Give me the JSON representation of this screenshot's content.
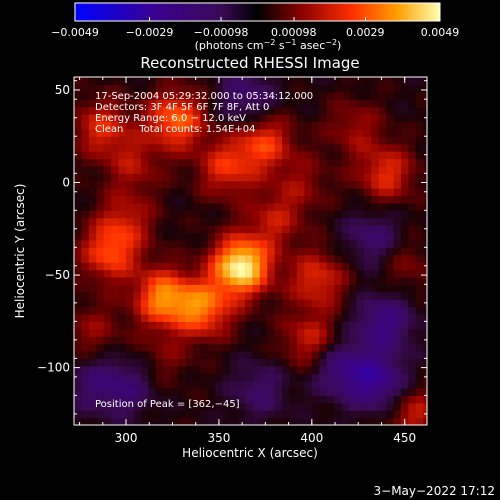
{
  "chart_data": {
    "type": "heatmap",
    "title": "Reconstructed RHESSI Image",
    "xlabel": "Heliocentric X (arcsec)",
    "ylabel": "Heliocentric Y (arcsec)",
    "xlim": [
      272,
      462
    ],
    "ylim": [
      -131,
      57
    ],
    "x_ticks": [
      300,
      350,
      400,
      450
    ],
    "y_ticks": [
      50,
      0,
      -50,
      -100
    ],
    "colorbar": {
      "range": [
        -0.0049,
        0.0049
      ],
      "ticks": [
        -0.0049,
        -0.0029,
        -0.00098,
        0.00098,
        0.0029,
        0.0049
      ],
      "tick_labels": [
        "−0.0049",
        "−0.0029",
        "−0.00098",
        "0.00098",
        "0.0029",
        "0.0049"
      ],
      "unit_label_parts": [
        "(photons cm",
        "−2",
        " s",
        "−1",
        " asec",
        "−2",
        ")"
      ]
    },
    "annotations": [
      "17-Sep-2004 05:29:32.000 to 05:34:12.000",
      "Detectors: 3F 4F 5F 6F 7F 8F, Att 0",
      "Energy Range: 6.0 − 12.0 keV",
      "Clean     Total counts: 1.54E+04"
    ],
    "peak_label": "Position of Peak = [362,−45]",
    "peak": {
      "x": 362,
      "y": -45,
      "value": 0.0049
    },
    "blobs": [
      {
        "x": 362,
        "y": -45,
        "value": 0.0049
      },
      {
        "x": 342,
        "y": -68,
        "value": 0.003
      },
      {
        "x": 320,
        "y": -62,
        "value": 0.0034
      },
      {
        "x": 291,
        "y": -38,
        "value": 0.0026
      },
      {
        "x": 327,
        "y": 34,
        "value": 0.0031
      },
      {
        "x": 287,
        "y": 30,
        "value": 0.0021
      },
      {
        "x": 374,
        "y": 22,
        "value": 0.0025
      },
      {
        "x": 354,
        "y": 8,
        "value": 0.0022
      },
      {
        "x": 403,
        "y": -52,
        "value": 0.0022
      },
      {
        "x": 440,
        "y": 5,
        "value": 0.0022
      },
      {
        "x": 399,
        "y": -85,
        "value": 0.0019
      },
      {
        "x": 300,
        "y": -20,
        "value": 0.0016
      },
      {
        "x": 304,
        "y": 10,
        "value": 0.0014
      },
      {
        "x": 282,
        "y": -80,
        "value": 0.0012
      },
      {
        "x": 455,
        "y": -125,
        "value": 0.0018
      },
      {
        "x": 423,
        "y": 30,
        "value": 0.0013
      },
      {
        "x": 451,
        "y": -45,
        "value": 0.001
      },
      {
        "x": 320,
        "y": -95,
        "value": 0.0009
      },
      {
        "x": 380,
        "y": -20,
        "value": 0.0016
      },
      {
        "x": 395,
        "y": 0,
        "value": 0.0011
      },
      {
        "x": 436,
        "y": -108,
        "value": -0.0024
      },
      {
        "x": 416,
        "y": -100,
        "value": -0.002
      },
      {
        "x": 300,
        "y": -110,
        "value": -0.0016
      },
      {
        "x": 439,
        "y": -75,
        "value": -0.0021
      },
      {
        "x": 365,
        "y": 45,
        "value": -0.0016
      },
      {
        "x": 433,
        "y": -30,
        "value": -0.0015
      },
      {
        "x": 372,
        "y": -112,
        "value": -0.0013
      },
      {
        "x": 281,
        "y": -108,
        "value": -0.0011
      }
    ]
  },
  "footer": {
    "date": "3−May−2022 17:12"
  }
}
